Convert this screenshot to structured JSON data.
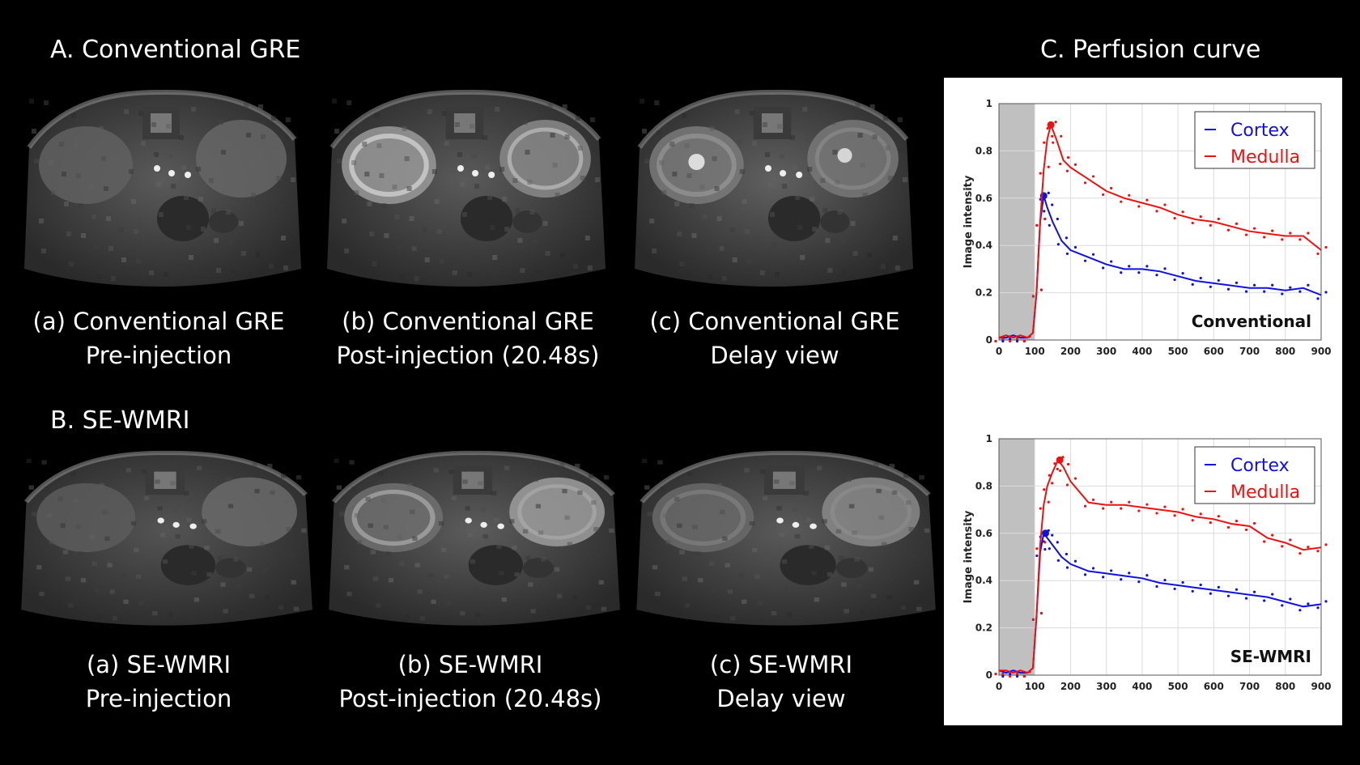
{
  "sections": {
    "a": "A. Conventional GRE",
    "b": "B. SE-WMRI",
    "c": "C. Perfusion curve"
  },
  "captions": {
    "conv": [
      {
        "line1": "(a) Conventional GRE",
        "line2": "Pre-injection"
      },
      {
        "line1": "(b) Conventional GRE",
        "line2": "Post-injection (20.48s)"
      },
      {
        "line1": "(c) Conventional GRE",
        "line2": "Delay view"
      }
    ],
    "sewmri": [
      {
        "line1": "(a) SE-WMRI",
        "line2": "Pre-injection"
      },
      {
        "line1": "(b) SE-WMRI",
        "line2": "Post-injection (20.48s)"
      },
      {
        "line1": "(c) SE-WMRI",
        "line2": "Delay view"
      }
    ]
  },
  "colors": {
    "cortex": "#1010e0",
    "medulla": "#ee1111",
    "shade": "#c0c0c0",
    "grid": "#dcdcdc"
  },
  "chart_data": [
    {
      "type": "line",
      "title": "Conventional",
      "xlabel": "",
      "ylabel": "Image intensity",
      "xlim": [
        0,
        900
      ],
      "ylim": [
        0,
        1
      ],
      "xticks": [
        "0",
        "100",
        "200",
        "300",
        "400",
        "500",
        "600",
        "700",
        "800",
        "900"
      ],
      "yticks": [
        "0",
        "0.2",
        "0.4",
        "0.6",
        "0.8",
        "1"
      ],
      "grid": true,
      "legend_position": "top-right",
      "shaded_region": [
        0,
        100
      ],
      "series": [
        {
          "name": "Cortex",
          "x": [
            0,
            20,
            40,
            60,
            80,
            95,
            105,
            115,
            125,
            135,
            150,
            175,
            200,
            250,
            300,
            350,
            400,
            450,
            500,
            550,
            600,
            650,
            700,
            750,
            800,
            850,
            900
          ],
          "values": [
            0.01,
            0.01,
            0.02,
            0.01,
            0.01,
            0.03,
            0.2,
            0.5,
            0.61,
            0.56,
            0.5,
            0.42,
            0.38,
            0.35,
            0.32,
            0.3,
            0.3,
            0.29,
            0.27,
            0.25,
            0.24,
            0.23,
            0.22,
            0.22,
            0.21,
            0.22,
            0.19
          ],
          "peak": [
            125,
            0.61
          ]
        },
        {
          "name": "Medulla",
          "x": [
            0,
            20,
            40,
            60,
            80,
            95,
            105,
            115,
            125,
            135,
            145,
            160,
            180,
            200,
            250,
            300,
            350,
            400,
            450,
            500,
            550,
            600,
            650,
            700,
            750,
            800,
            850,
            900
          ],
          "values": [
            0.01,
            0.02,
            0.01,
            0.02,
            0.01,
            0.03,
            0.2,
            0.5,
            0.72,
            0.85,
            0.91,
            0.85,
            0.76,
            0.73,
            0.68,
            0.63,
            0.6,
            0.58,
            0.56,
            0.53,
            0.51,
            0.5,
            0.48,
            0.46,
            0.45,
            0.44,
            0.44,
            0.38
          ],
          "peak": [
            145,
            0.91
          ]
        }
      ]
    },
    {
      "type": "line",
      "title": "SE-WMRI",
      "xlabel": "",
      "ylabel": "Image intensity",
      "xlim": [
        0,
        900
      ],
      "ylim": [
        0,
        1
      ],
      "xticks": [
        "0",
        "100",
        "200",
        "300",
        "400",
        "500",
        "600",
        "700",
        "800",
        "900"
      ],
      "yticks": [
        "0",
        "0.2",
        "0.4",
        "0.6",
        "0.8",
        "1"
      ],
      "grid": true,
      "legend_position": "top-right",
      "shaded_region": [
        0,
        100
      ],
      "series": [
        {
          "name": "Cortex",
          "x": [
            0,
            20,
            40,
            60,
            80,
            95,
            105,
            115,
            125,
            135,
            150,
            175,
            200,
            250,
            300,
            350,
            400,
            450,
            500,
            550,
            600,
            650,
            700,
            750,
            800,
            850,
            900
          ],
          "values": [
            0.02,
            0.01,
            0.02,
            0.01,
            0.01,
            0.03,
            0.25,
            0.52,
            0.6,
            0.58,
            0.55,
            0.5,
            0.47,
            0.44,
            0.43,
            0.42,
            0.41,
            0.39,
            0.38,
            0.37,
            0.36,
            0.35,
            0.34,
            0.33,
            0.31,
            0.29,
            0.3
          ],
          "peak": [
            130,
            0.6
          ]
        },
        {
          "name": "Medulla",
          "x": [
            0,
            20,
            40,
            60,
            80,
            95,
            105,
            115,
            125,
            135,
            150,
            165,
            180,
            200,
            250,
            300,
            350,
            400,
            450,
            500,
            550,
            600,
            650,
            700,
            750,
            800,
            850,
            900
          ],
          "values": [
            0.02,
            0.02,
            0.01,
            0.02,
            0.01,
            0.03,
            0.25,
            0.55,
            0.72,
            0.8,
            0.86,
            0.91,
            0.88,
            0.82,
            0.73,
            0.72,
            0.72,
            0.71,
            0.7,
            0.69,
            0.67,
            0.66,
            0.64,
            0.63,
            0.58,
            0.56,
            0.53,
            0.54
          ],
          "peak": [
            170,
            0.91
          ]
        }
      ]
    }
  ]
}
